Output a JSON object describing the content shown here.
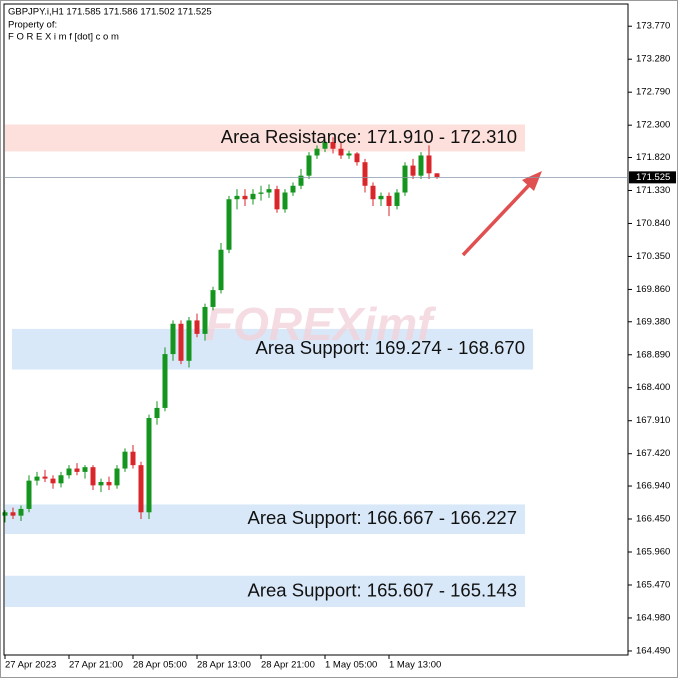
{
  "chart_data": {
    "type": "candlestick",
    "header": "GBPJPY.i,H1  171.585 171.586 171.502 171.525",
    "owner_label": "Property of:",
    "owner": "F O R E X i m f [dot] c o m",
    "watermark": "FOREXimf",
    "up_color": "#14961e",
    "down_color": "#d9262b",
    "categories": [
      "27 Apr 2023",
      null,
      null,
      null,
      null,
      null,
      null,
      null,
      "27 Apr 21:00",
      null,
      null,
      null,
      null,
      null,
      null,
      null,
      "28 Apr 05:00",
      null,
      null,
      null,
      null,
      null,
      null,
      null,
      "28 Apr 13:00",
      null,
      null,
      null,
      null,
      null,
      null,
      null,
      "28 Apr 21:00",
      null,
      null,
      null,
      null,
      null,
      null,
      null,
      "1 May 05:00",
      null,
      null,
      null,
      null,
      null,
      null,
      null,
      "1 May 13:00",
      null,
      null,
      null,
      null,
      null,
      null
    ],
    "open": [
      166.5,
      166.55,
      166.5,
      166.6,
      167.02,
      167.08,
      167.05,
      166.98,
      167.1,
      167.2,
      167.15,
      167.22,
      166.95,
      167.0,
      166.95,
      167.2,
      167.45,
      167.25,
      166.55,
      167.95,
      168.1,
      168.9,
      169.35,
      168.8,
      169.4,
      169.2,
      169.6,
      169.85,
      170.45,
      171.2,
      171.25,
      171.2,
      171.28,
      171.3,
      171.35,
      171.05,
      171.3,
      171.4,
      171.55,
      171.85,
      171.95,
      172.05,
      171.95,
      171.85,
      171.88,
      171.75,
      171.4,
      171.2,
      171.25,
      171.1,
      171.3,
      171.7,
      171.55,
      171.85,
      171.585
    ],
    "high": [
      166.58,
      166.62,
      166.65,
      167.1,
      167.15,
      167.18,
      167.1,
      167.15,
      167.25,
      167.28,
      167.25,
      167.25,
      167.05,
      167.08,
      167.25,
      167.5,
      167.55,
      167.3,
      168.0,
      168.2,
      169.0,
      169.4,
      169.4,
      169.45,
      169.5,
      169.65,
      169.9,
      170.55,
      171.25,
      171.35,
      171.35,
      171.35,
      171.4,
      171.42,
      171.4,
      171.35,
      171.45,
      171.65,
      171.9,
      172.0,
      172.1,
      172.12,
      172.05,
      171.92,
      171.9,
      171.8,
      171.45,
      171.3,
      171.3,
      171.35,
      171.75,
      171.8,
      171.9,
      172.0,
      171.586
    ],
    "low": [
      166.4,
      166.45,
      166.42,
      166.55,
      166.95,
      167.0,
      166.9,
      166.92,
      167.05,
      167.1,
      167.05,
      166.88,
      166.85,
      166.88,
      166.9,
      167.15,
      167.2,
      166.45,
      166.45,
      167.85,
      168.05,
      168.8,
      168.75,
      168.7,
      169.15,
      169.1,
      169.55,
      169.8,
      170.4,
      171.05,
      171.1,
      171.12,
      171.18,
      171.22,
      171.0,
      171.0,
      171.25,
      171.35,
      171.5,
      171.8,
      171.9,
      171.88,
      171.8,
      171.8,
      171.7,
      171.3,
      171.1,
      171.1,
      170.95,
      171.05,
      171.25,
      171.5,
      171.5,
      171.5,
      171.502
    ],
    "close": [
      166.55,
      166.5,
      166.6,
      167.02,
      167.08,
      167.05,
      166.98,
      167.1,
      167.2,
      167.15,
      167.22,
      166.95,
      167.0,
      166.95,
      167.2,
      167.45,
      167.25,
      166.55,
      167.95,
      168.1,
      168.9,
      169.35,
      168.8,
      169.4,
      169.2,
      169.6,
      169.85,
      170.45,
      171.2,
      171.25,
      171.2,
      171.28,
      171.3,
      171.35,
      171.05,
      171.3,
      171.4,
      171.55,
      171.85,
      171.95,
      172.05,
      171.95,
      171.85,
      171.88,
      171.75,
      171.4,
      171.2,
      171.25,
      171.1,
      171.3,
      171.7,
      171.55,
      171.85,
      171.585,
      171.525
    ],
    "current_price": {
      "value": 171.525,
      "label": "171.525"
    },
    "ylim": [
      164.43,
      174.1
    ],
    "yticks": [
      {
        "value": 173.77,
        "label": "173.770"
      },
      {
        "value": 173.28,
        "label": "173.280"
      },
      {
        "value": 172.79,
        "label": "172.790"
      },
      {
        "value": 172.3,
        "label": "172.300"
      },
      {
        "value": 171.82,
        "label": "171.820"
      },
      {
        "value": 171.33,
        "label": "171.330"
      },
      {
        "value": 170.84,
        "label": "170.840"
      },
      {
        "value": 170.35,
        "label": "170.350"
      },
      {
        "value": 169.86,
        "label": "169.860"
      },
      {
        "value": 169.38,
        "label": "169.380"
      },
      {
        "value": 168.89,
        "label": "168.890"
      },
      {
        "value": 168.4,
        "label": "168.400"
      },
      {
        "value": 167.91,
        "label": "167.910"
      },
      {
        "value": 167.42,
        "label": "167.420"
      },
      {
        "value": 166.94,
        "label": "166.940"
      },
      {
        "value": 166.45,
        "label": "166.450"
      },
      {
        "value": 165.96,
        "label": "165.960"
      },
      {
        "value": 165.47,
        "label": "165.470"
      },
      {
        "value": 164.98,
        "label": "164.980"
      },
      {
        "value": 164.49,
        "label": "164.490"
      }
    ],
    "zones": [
      {
        "label": "Area Resistance: 171.910 - 172.310",
        "from": 171.91,
        "to": 172.31,
        "color": "#fde0dc"
      },
      {
        "label": "Area Support: 169.274 - 168.670",
        "from": 169.274,
        "to": 168.67,
        "color": "#d8e8f8"
      },
      {
        "label": "Area Support: 166.667 - 166.227",
        "from": 166.667,
        "to": 166.227,
        "color": "#d8e8f8"
      },
      {
        "label": "Area Support: 165.607 - 165.143",
        "from": 165.607,
        "to": 165.143,
        "color": "#d8e8f8"
      }
    ]
  }
}
